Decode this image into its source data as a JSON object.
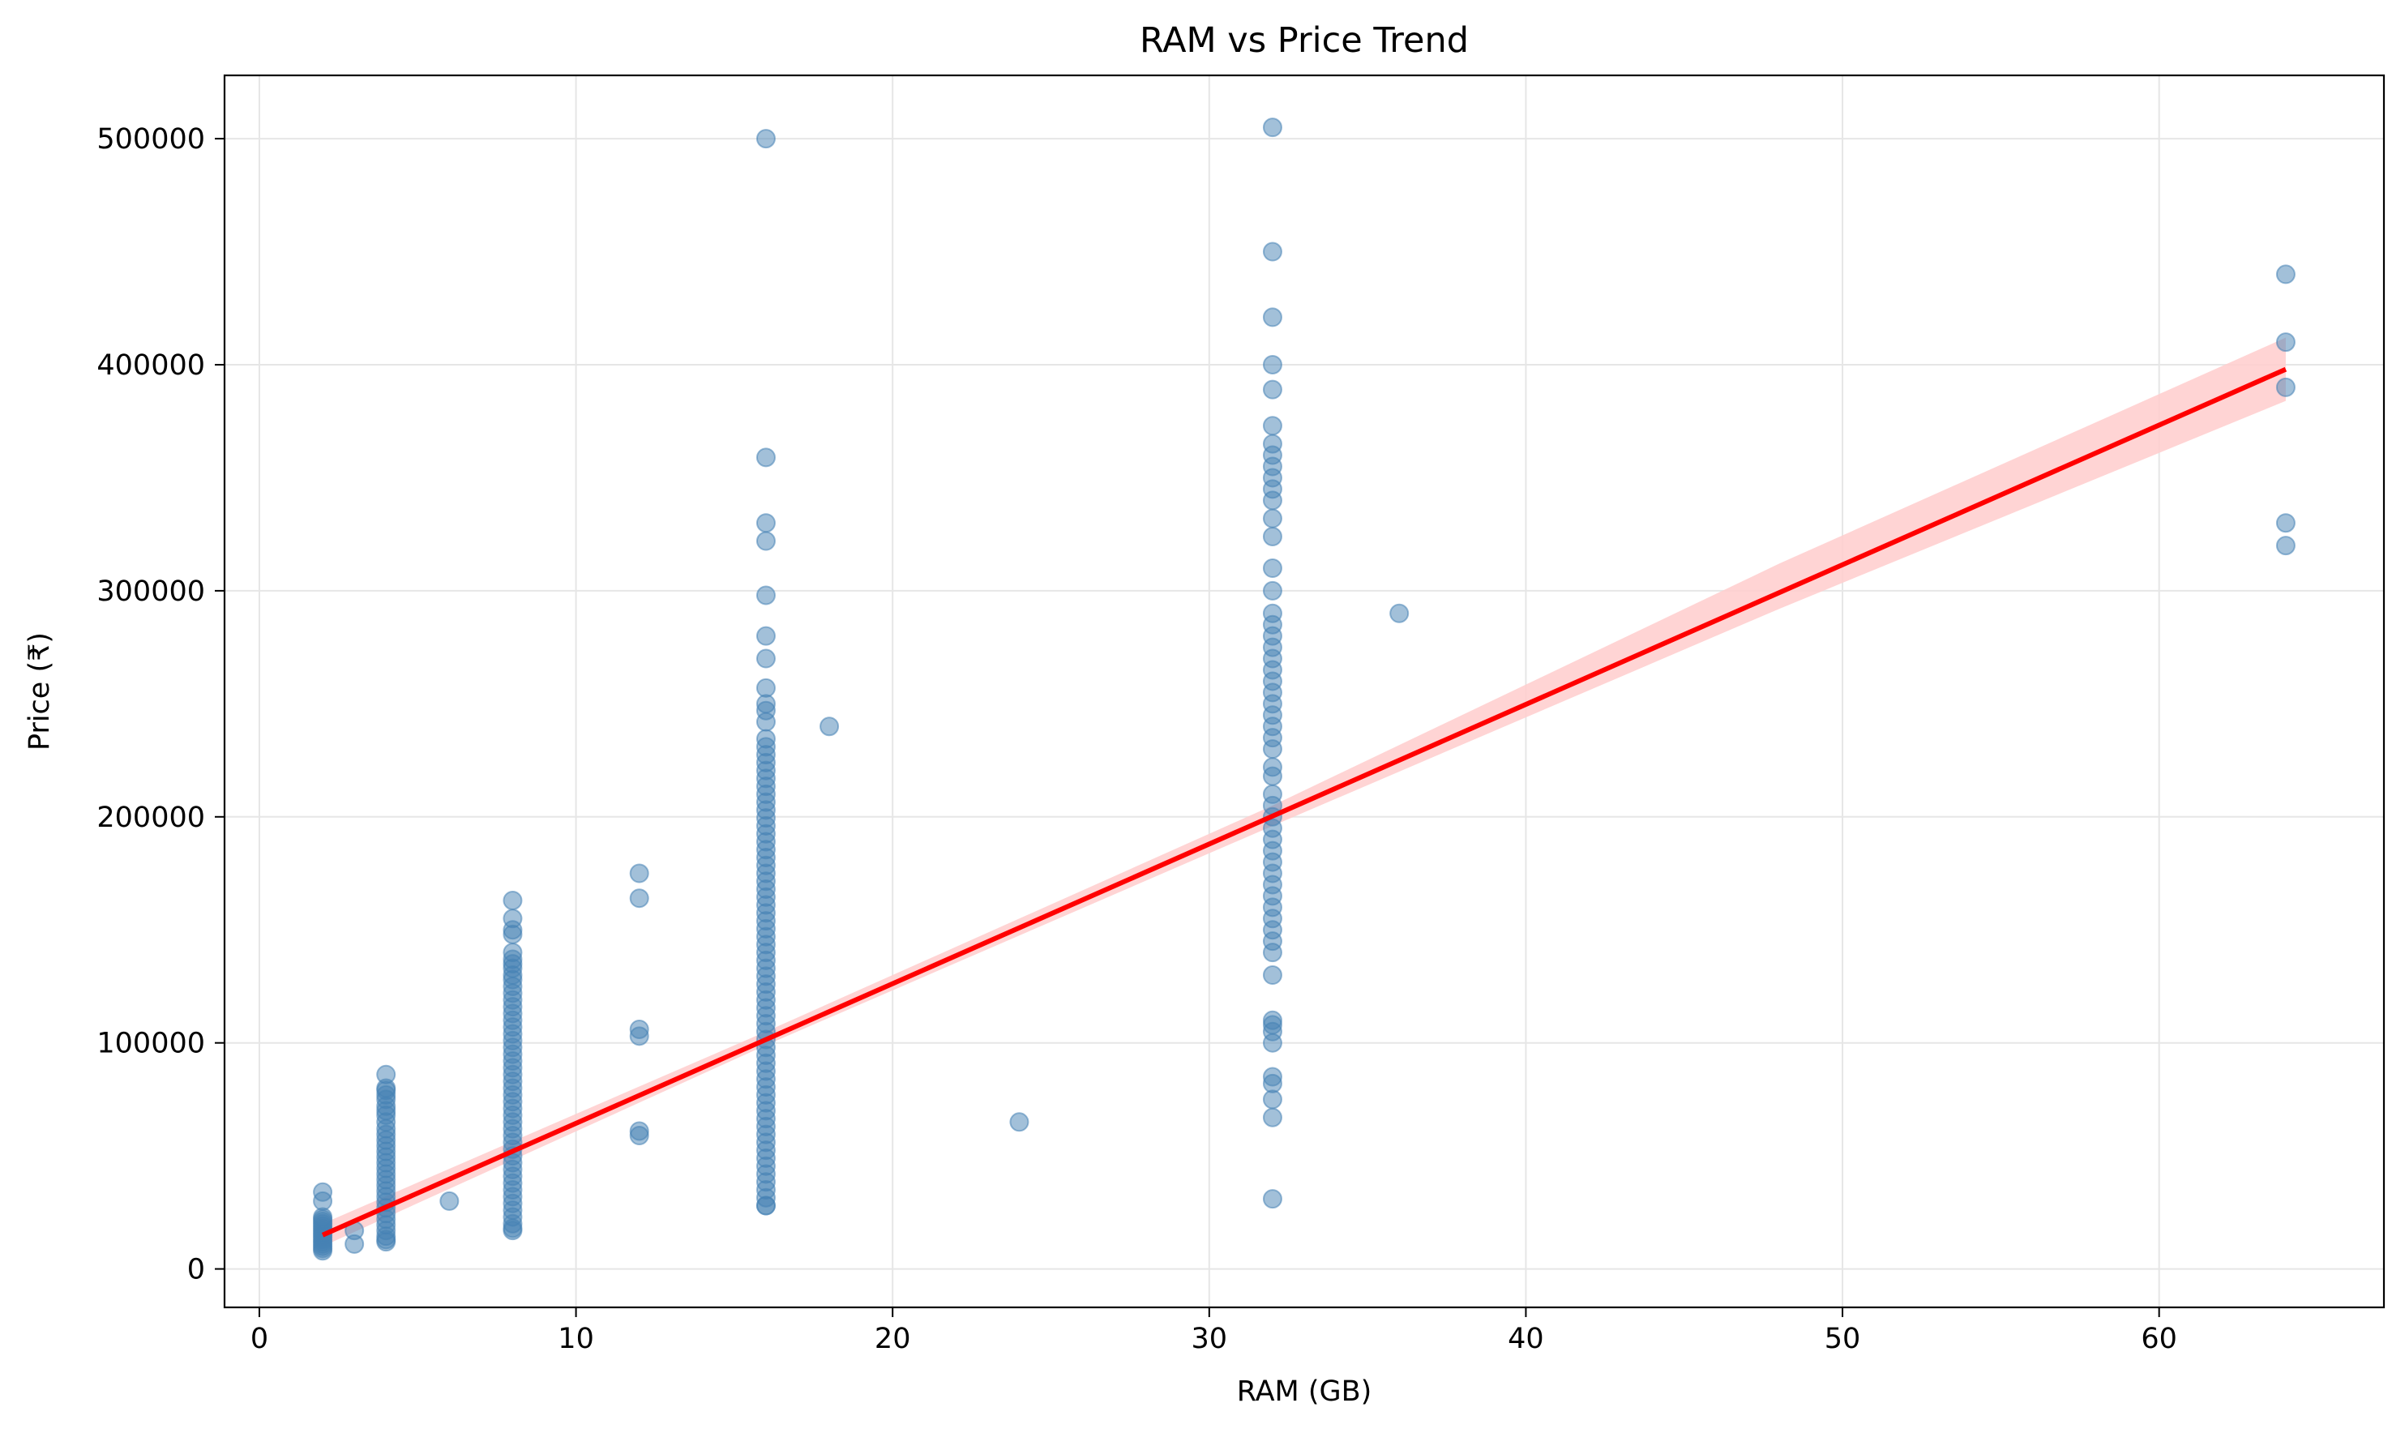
{
  "chart_data": {
    "type": "scatter",
    "title": "RAM vs Price Trend",
    "xlabel": "RAM (GB)",
    "ylabel": "Price (₹)",
    "xlim": [
      -1.1,
      67.1
    ],
    "ylim": [
      -17000,
      528000
    ],
    "x_ticks": [
      0,
      10,
      20,
      30,
      40,
      50,
      60
    ],
    "y_ticks": [
      0,
      100000,
      200000,
      300000,
      400000,
      500000
    ],
    "grid": true,
    "legend": "none",
    "colors": {
      "points": "#4682b4",
      "trend_line": "#ff0000",
      "confidence_band": "#ffcccc",
      "grid": "#e6e6e6"
    },
    "series": [
      {
        "type": "scatter",
        "columns": [
          {
            "x": 2,
            "y": [
              8000,
              9000,
              10000,
              11000,
              12000,
              13000,
              14000,
              15000,
              16000,
              17000,
              18000,
              19000,
              20000,
              21000,
              22000,
              23000,
              30000,
              34000
            ]
          },
          {
            "x": 3,
            "y": [
              11000,
              17000
            ]
          },
          {
            "x": 4,
            "fill_from": 12000,
            "fill_to": 62000,
            "fill_step": 2500,
            "y": [
              13000,
              65000,
              68000,
              70000,
              72000,
              75000,
              77000,
              79000,
              80000,
              86000
            ]
          },
          {
            "x": 6,
            "y": [
              30000
            ]
          },
          {
            "x": 8,
            "fill_from": 17000,
            "fill_to": 128000,
            "fill_step": 3000,
            "y": [
              18000,
              130000,
              133000,
              135000,
              137000,
              140000,
              148000,
              150000,
              155000,
              163000
            ]
          },
          {
            "x": 12,
            "y": [
              59000,
              61000,
              103000,
              106000,
              164000,
              175000
            ]
          },
          {
            "x": 16,
            "fill_from": 28000,
            "fill_to": 235000,
            "fill_step": 3500,
            "y": [
              28000,
              242000,
              247000,
              250000,
              257000,
              270000,
              280000,
              298000,
              322000,
              330000,
              359000,
              500000
            ]
          },
          {
            "x": 18,
            "y": [
              240000
            ]
          },
          {
            "x": 24,
            "y": [
              65000
            ]
          },
          {
            "x": 32,
            "y": [
              31000,
              67000,
              75000,
              82000,
              85000,
              100000,
              105000,
              108000,
              110000,
              130000,
              140000,
              145000,
              150000,
              155000,
              160000,
              165000,
              170000,
              175000,
              180000,
              185000,
              190000,
              195000,
              200000,
              205000,
              210000,
              218000,
              222000,
              230000,
              235000,
              240000,
              245000,
              250000,
              255000,
              260000,
              265000,
              270000,
              275000,
              280000,
              285000,
              290000,
              300000,
              310000,
              324000,
              332000,
              340000,
              345000,
              350000,
              355000,
              360000,
              365000,
              373000,
              389000,
              400000,
              421000,
              450000,
              505000
            ]
          },
          {
            "x": 36,
            "y": [
              290000
            ]
          },
          {
            "x": 64,
            "y": [
              320000,
              330000,
              390000,
              410000,
              440000
            ]
          }
        ]
      },
      {
        "type": "line",
        "x": [
          2,
          64
        ],
        "y": [
          15000,
          398000
        ],
        "band_x": [
          2,
          16,
          32,
          48,
          64
        ],
        "band_lower": [
          10000,
          99000,
          196000,
          292000,
          384000
        ],
        "band_upper": [
          20000,
          105000,
          205000,
          312000,
          412000
        ]
      }
    ]
  }
}
